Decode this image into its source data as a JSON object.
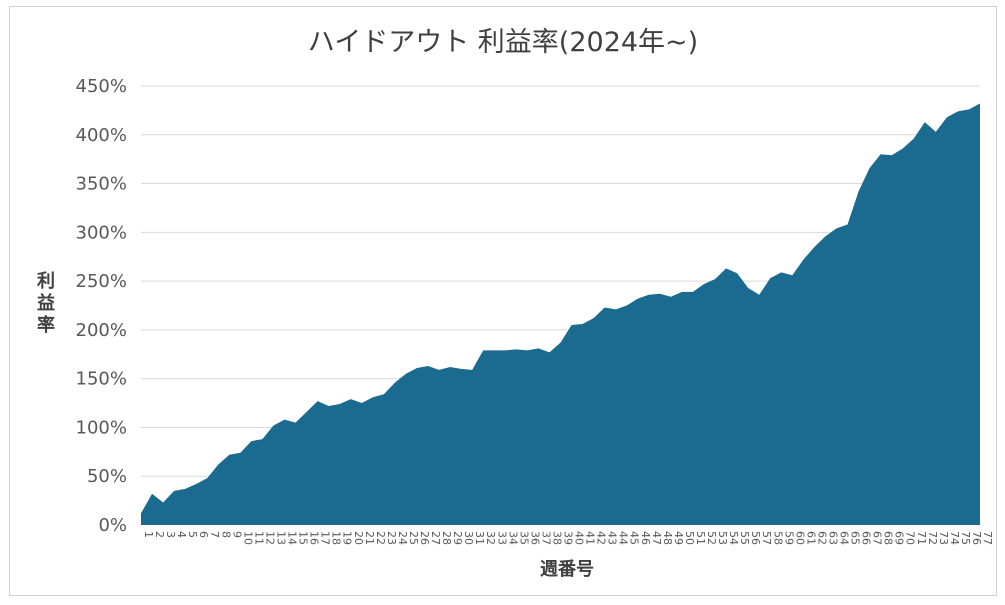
{
  "chart_data": {
    "type": "area",
    "title": "ハイドアウト 利益率(2024年~)",
    "xlabel": "週番号",
    "ylabel": "利益率",
    "ylim": [
      0,
      450
    ],
    "yticks": [
      0,
      50,
      100,
      150,
      200,
      250,
      300,
      350,
      400,
      450
    ],
    "ytick_labels": [
      "0%",
      "50%",
      "100%",
      "150%",
      "200%",
      "250%",
      "300%",
      "350%",
      "400%",
      "450%"
    ],
    "grid": true,
    "legend": "none",
    "color": "#1a6b8f",
    "x": [
      1,
      2,
      3,
      4,
      5,
      6,
      7,
      8,
      9,
      10,
      11,
      12,
      13,
      14,
      15,
      16,
      17,
      18,
      19,
      20,
      21,
      22,
      23,
      24,
      25,
      26,
      27,
      28,
      29,
      30,
      31,
      32,
      33,
      34,
      35,
      36,
      37,
      38,
      39,
      40,
      41,
      42,
      43,
      44,
      45,
      46,
      47,
      48,
      49,
      50,
      51,
      52,
      53,
      54,
      55,
      56,
      57,
      58,
      59,
      60,
      61,
      62,
      63,
      64,
      65,
      66,
      67,
      68,
      69,
      70,
      71,
      72,
      73,
      74,
      75,
      76,
      77
    ],
    "series": [
      {
        "values": [
          12,
          32,
          23,
          35,
          37,
          42,
          48,
          62,
          72,
          74,
          86,
          88,
          102,
          108,
          105,
          116,
          127,
          122,
          124,
          129,
          125,
          131,
          134,
          146,
          155,
          161,
          163,
          159,
          162,
          160,
          159,
          179,
          179,
          179,
          180,
          179,
          181,
          177,
          187,
          205,
          206,
          212,
          223,
          221,
          225,
          232,
          236,
          237,
          234,
          239,
          239,
          247,
          252,
          263,
          258,
          243,
          236,
          253,
          259,
          256,
          272,
          285,
          296,
          304,
          308,
          342,
          366,
          380,
          379,
          386,
          396,
          413,
          403,
          418,
          424,
          426,
          432
        ]
      }
    ]
  }
}
